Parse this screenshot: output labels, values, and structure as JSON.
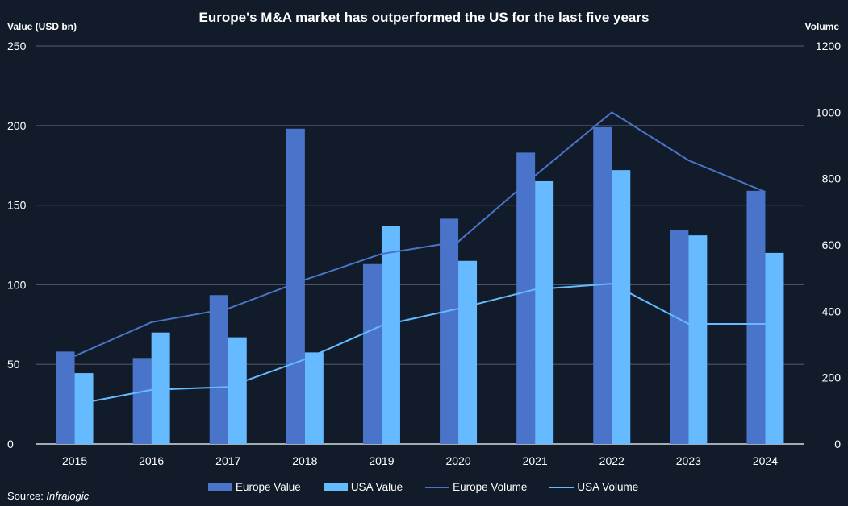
{
  "chart_data": {
    "type": "bar",
    "title": "Europe's M&A market has outperformed the US for the last five years",
    "ylabel": "Value (USD bn)",
    "y2label": "Volume",
    "categories": [
      "2015",
      "2016",
      "2017",
      "2018",
      "2019",
      "2020",
      "2021",
      "2022",
      "2023",
      "2024"
    ],
    "ylim": [
      0,
      250
    ],
    "yticks": [
      0,
      50,
      100,
      150,
      200,
      250
    ],
    "y2lim": [
      0,
      1200
    ],
    "y2ticks": [
      0,
      200,
      400,
      600,
      800,
      1000,
      1200
    ],
    "grid": true,
    "legend_position": "bottom",
    "series": [
      {
        "name": "Europe Value",
        "type": "bar",
        "axis": "left",
        "color": "#4a74c9",
        "values": [
          58,
          54,
          93.5,
          198,
          113,
          141.5,
          183,
          199,
          134.5,
          159
        ]
      },
      {
        "name": "USA Value",
        "type": "bar",
        "axis": "left",
        "color": "#66baff",
        "values": [
          44.5,
          70,
          67,
          57.5,
          137,
          115,
          165,
          172,
          131,
          120
        ]
      },
      {
        "name": "Europe Volume",
        "type": "line",
        "axis": "right",
        "color": "#4a74c9",
        "values": [
          265,
          367,
          408,
          495,
          573,
          610,
          809,
          1000,
          855,
          760
        ]
      },
      {
        "name": "USA Volume",
        "type": "line",
        "axis": "right",
        "color": "#66baff",
        "values": [
          119,
          163,
          172,
          255,
          357,
          408,
          466,
          483,
          362,
          362
        ]
      }
    ]
  },
  "source": {
    "prefix": "Source: ",
    "name": "Infralogic"
  }
}
